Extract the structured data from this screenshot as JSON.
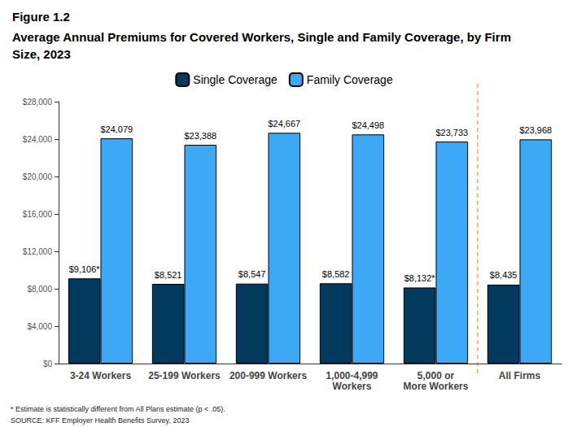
{
  "chart_data": {
    "type": "bar",
    "title": "Figure 1.2",
    "subtitle": "Average Annual Premiums for Covered Workers, Single and Family Coverage, by Firm Size, 2023",
    "categories": [
      "3-24 Workers",
      "25-199 Workers",
      "200-999 Workers",
      "1,000-4,999 Workers",
      "5,000 or More Workers",
      "All Firms"
    ],
    "series": [
      {
        "name": "Single Coverage",
        "color": "#023a5e",
        "values": [
          9106,
          8521,
          8547,
          8582,
          8132,
          8435
        ],
        "value_labels": [
          "$9,106*",
          "$8,521",
          "$8,547",
          "$8,582",
          "$8,132*",
          "$8,435"
        ]
      },
      {
        "name": "Family Coverage",
        "color": "#3ca8f6",
        "values": [
          24079,
          23388,
          24667,
          24498,
          23733,
          23968
        ],
        "value_labels": [
          "$24,079",
          "$23,388",
          "$24,667",
          "$24,498",
          "$23,733",
          "$23,968"
        ]
      }
    ],
    "ylim": [
      0,
      28000
    ],
    "yticks": [
      {
        "value": 0,
        "label": "$0"
      },
      {
        "value": 4000,
        "label": "$4,000"
      },
      {
        "value": 8000,
        "label": "$8,000"
      },
      {
        "value": 12000,
        "label": "$12,000"
      },
      {
        "value": 16000,
        "label": "$16,000"
      },
      {
        "value": 20000,
        "label": "$20,000"
      },
      {
        "value": 24000,
        "label": "$24,000"
      },
      {
        "value": 28000,
        "label": "$28,000"
      }
    ],
    "data_labels": true,
    "legend": "top",
    "grid": false,
    "annotations": [
      "* Estimate is statistically different from All Plans estimate (p < .05).",
      "SOURCE: KFF Employer Health Benefits Survey, 2023"
    ]
  }
}
